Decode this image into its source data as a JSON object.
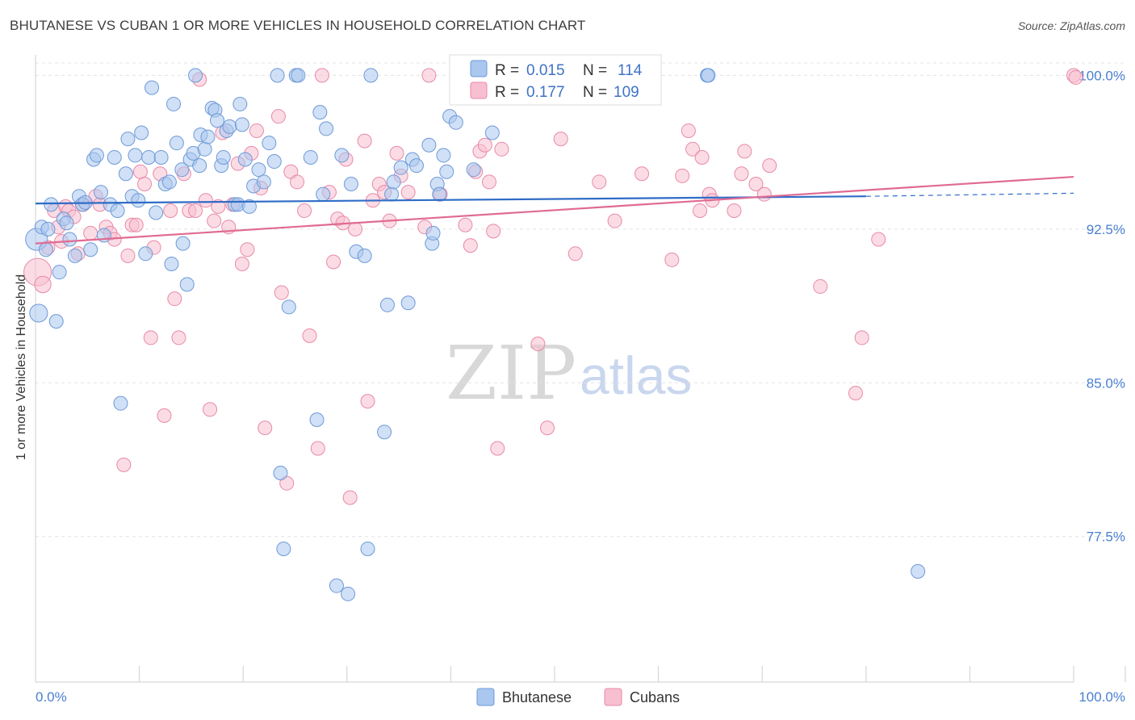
{
  "title": "BHUTANESE VS CUBAN 1 OR MORE VEHICLES IN HOUSEHOLD CORRELATION CHART",
  "source": "Source: ZipAtlas.com",
  "watermark": {
    "zip": "ZIP",
    "atlas": "atlas"
  },
  "legend_top": {
    "rows": [
      {
        "r_label": "R =",
        "r_value": "0.015",
        "n_label": "N =",
        "n_value": "114"
      },
      {
        "r_label": "R =",
        "r_value": "0.177",
        "n_label": "N =",
        "n_value": "109"
      }
    ]
  },
  "legend_bottom": [
    "Bhutanese",
    "Cubans"
  ],
  "colors": {
    "bhutanese_fill": "#a9c7ef",
    "bhutanese_stroke": "#6e9ad8",
    "bhutanese_line": "#2f6cc6",
    "cubans_fill": "#f7bfd0",
    "cubans_stroke": "#e88aa8",
    "cubans_line": "#e06b92",
    "tick_label": "#4a7fd0",
    "grid": "#e3e3e3"
  },
  "chart_data": {
    "type": "scatter",
    "title": "BHUTANESE VS CUBAN 1 OR MORE VEHICLES IN HOUSEHOLD CORRELATION CHART",
    "xlabel": "",
    "ylabel": "1 or more Vehicles in Household",
    "xlim": [
      0,
      100
    ],
    "ylim": [
      70.4,
      101.0
    ],
    "x_tick_labels": [
      "0.0%",
      "100.0%"
    ],
    "y_ticks": [
      77.5,
      85.0,
      92.5,
      100.0
    ],
    "y_tick_labels": [
      "77.5%",
      "85.0%",
      "92.5%",
      "100.0%"
    ],
    "grid": "horizontal dashed",
    "legend_placement": "top-center and bottom",
    "series": [
      {
        "name": "Bhutanese",
        "r": 0.015,
        "n": 114,
        "trend": {
          "x": [
            0,
            80
          ],
          "y": [
            93.75,
            94.1
          ],
          "dashed_extension_to_x": 100,
          "dashed_end_y": 94.25
        },
        "points": [
          [
            0.1,
            92.0,
            1.6
          ],
          [
            0.3,
            88.4,
            1.3
          ],
          [
            0.6,
            92.6,
            1.0
          ],
          [
            1.0,
            91.5,
            1.0
          ],
          [
            1.2,
            92.5,
            1.0
          ],
          [
            1.5,
            93.7,
            1.0
          ],
          [
            2.0,
            88.0,
            1.0
          ],
          [
            2.3,
            90.4,
            1.0
          ],
          [
            2.7,
            93.0,
            1.0
          ],
          [
            3.0,
            92.8,
            1.0
          ],
          [
            3.3,
            92.0,
            1.0
          ],
          [
            3.8,
            91.2,
            1.0
          ],
          [
            4.2,
            94.1,
            1.0
          ],
          [
            4.5,
            93.7,
            1.0
          ],
          [
            4.8,
            93.8,
            1.0
          ],
          [
            5.3,
            91.5,
            1.0
          ],
          [
            5.6,
            95.9,
            1.0
          ],
          [
            5.9,
            96.1,
            1.0
          ],
          [
            6.3,
            94.3,
            1.0
          ],
          [
            6.6,
            92.2,
            1.0
          ],
          [
            7.2,
            93.7,
            1.0
          ],
          [
            7.6,
            96.0,
            1.0
          ],
          [
            7.9,
            93.4,
            1.0
          ],
          [
            8.2,
            84.0,
            1.0
          ],
          [
            8.7,
            95.2,
            1.0
          ],
          [
            8.9,
            96.9,
            1.0
          ],
          [
            9.3,
            94.1,
            1.0
          ],
          [
            9.6,
            96.1,
            1.0
          ],
          [
            9.9,
            93.9,
            1.0
          ],
          [
            10.2,
            97.2,
            1.0
          ],
          [
            10.6,
            91.3,
            1.0
          ],
          [
            10.9,
            96.0,
            1.0
          ],
          [
            11.2,
            99.4,
            1.0
          ],
          [
            11.6,
            93.3,
            1.0
          ],
          [
            12.1,
            96.0,
            1.0
          ],
          [
            12.5,
            94.7,
            1.0
          ],
          [
            12.9,
            94.8,
            1.0
          ],
          [
            13.1,
            90.8,
            1.0
          ],
          [
            13.3,
            98.6,
            1.0
          ],
          [
            13.6,
            96.7,
            1.0
          ],
          [
            14.1,
            95.4,
            1.0
          ],
          [
            14.2,
            91.8,
            1.0
          ],
          [
            14.6,
            89.8,
            1.0
          ],
          [
            14.9,
            95.9,
            1.0
          ],
          [
            15.2,
            96.2,
            1.0
          ],
          [
            15.4,
            100.0,
            1.0
          ],
          [
            15.8,
            95.6,
            1.0
          ],
          [
            15.9,
            97.1,
            1.0
          ],
          [
            16.3,
            96.4,
            1.0
          ],
          [
            16.6,
            97.0,
            1.0
          ],
          [
            17.0,
            98.4,
            1.0
          ],
          [
            17.3,
            98.3,
            1.0
          ],
          [
            17.5,
            97.8,
            1.0
          ],
          [
            17.9,
            95.6,
            1.0
          ],
          [
            18.1,
            96.0,
            1.0
          ],
          [
            18.4,
            97.3,
            1.0
          ],
          [
            18.7,
            97.5,
            1.0
          ],
          [
            19.2,
            93.7,
            1.0
          ],
          [
            19.5,
            93.7,
            1.0
          ],
          [
            19.7,
            98.6,
            1.0
          ],
          [
            19.9,
            97.6,
            1.0
          ],
          [
            20.2,
            95.9,
            1.0
          ],
          [
            20.6,
            93.6,
            1.0
          ],
          [
            21.0,
            94.6,
            1.0
          ],
          [
            21.5,
            95.4,
            1.0
          ],
          [
            22.0,
            94.8,
            1.0
          ],
          [
            22.5,
            96.7,
            1.0
          ],
          [
            23.0,
            95.8,
            1.0
          ],
          [
            23.3,
            100.0,
            1.0
          ],
          [
            23.6,
            80.6,
            1.0
          ],
          [
            23.9,
            76.9,
            1.0
          ],
          [
            24.4,
            88.7,
            1.0
          ],
          [
            25.1,
            100.0,
            1.0
          ],
          [
            25.3,
            100.0,
            1.0
          ],
          [
            26.5,
            96.0,
            1.0
          ],
          [
            27.1,
            83.2,
            1.0
          ],
          [
            27.4,
            98.2,
            1.0
          ],
          [
            27.7,
            94.2,
            1.0
          ],
          [
            28.0,
            97.4,
            1.0
          ],
          [
            29.0,
            75.1,
            1.0
          ],
          [
            29.5,
            96.1,
            1.0
          ],
          [
            30.1,
            74.7,
            1.0
          ],
          [
            30.4,
            94.7,
            1.0
          ],
          [
            30.9,
            91.4,
            1.0
          ],
          [
            31.7,
            91.2,
            1.0
          ],
          [
            32.0,
            76.9,
            1.0
          ],
          [
            32.3,
            100.0,
            1.0
          ],
          [
            33.6,
            82.6,
            1.0
          ],
          [
            33.9,
            88.8,
            1.0
          ],
          [
            34.3,
            94.2,
            1.0
          ],
          [
            34.5,
            94.8,
            1.0
          ],
          [
            35.2,
            95.5,
            1.0
          ],
          [
            35.9,
            88.9,
            1.0
          ],
          [
            36.3,
            95.9,
            1.0
          ],
          [
            36.7,
            95.6,
            1.0
          ],
          [
            37.9,
            96.6,
            1.0
          ],
          [
            38.2,
            91.8,
            1.0
          ],
          [
            38.3,
            92.3,
            1.0
          ],
          [
            38.7,
            94.7,
            1.0
          ],
          [
            38.9,
            94.2,
            1.0
          ],
          [
            39.3,
            96.1,
            1.0
          ],
          [
            39.6,
            95.3,
            1.0
          ],
          [
            39.9,
            98.0,
            1.0
          ],
          [
            40.5,
            97.7,
            1.0
          ],
          [
            42.2,
            95.4,
            1.0
          ],
          [
            44.0,
            97.2,
            1.0
          ],
          [
            58.5,
            100.0,
            1.0
          ],
          [
            64.7,
            100.0,
            1.0
          ],
          [
            64.8,
            100.0,
            1.0
          ],
          [
            85.0,
            75.8,
            1.0
          ]
        ]
      },
      {
        "name": "Cubans",
        "r": 0.177,
        "n": 109,
        "trend": {
          "x": [
            0,
            100
          ],
          "y": [
            91.8,
            95.05
          ]
        },
        "points": [
          [
            0.2,
            90.4,
            2.0
          ],
          [
            0.7,
            89.8,
            1.2
          ],
          [
            1.2,
            91.6,
            1.0
          ],
          [
            1.8,
            93.4,
            1.0
          ],
          [
            2.2,
            92.6,
            1.0
          ],
          [
            2.5,
            91.9,
            1.0
          ],
          [
            2.9,
            93.6,
            1.0
          ],
          [
            3.2,
            93.4,
            1.0
          ],
          [
            3.7,
            93.1,
            1.0
          ],
          [
            4.1,
            91.3,
            1.0
          ],
          [
            4.6,
            93.7,
            1.0
          ],
          [
            5.3,
            92.3,
            1.0
          ],
          [
            5.8,
            94.1,
            1.0
          ],
          [
            6.2,
            93.7,
            1.0
          ],
          [
            6.8,
            92.6,
            1.0
          ],
          [
            7.2,
            92.3,
            1.0
          ],
          [
            7.6,
            92.0,
            1.0
          ],
          [
            8.5,
            81.0,
            1.0
          ],
          [
            8.9,
            91.2,
            1.0
          ],
          [
            9.3,
            92.7,
            1.0
          ],
          [
            9.7,
            92.7,
            1.0
          ],
          [
            10.1,
            95.3,
            1.0
          ],
          [
            10.5,
            94.7,
            1.0
          ],
          [
            11.1,
            87.2,
            1.0
          ],
          [
            11.4,
            91.6,
            1.0
          ],
          [
            12.0,
            95.2,
            1.0
          ],
          [
            12.4,
            83.4,
            1.0
          ],
          [
            13.0,
            93.4,
            1.0
          ],
          [
            13.4,
            89.1,
            1.0
          ],
          [
            13.8,
            87.2,
            1.0
          ],
          [
            14.3,
            95.2,
            1.0
          ],
          [
            14.8,
            93.4,
            1.0
          ],
          [
            15.4,
            93.4,
            1.0
          ],
          [
            15.8,
            99.8,
            1.0
          ],
          [
            16.4,
            93.9,
            1.0
          ],
          [
            16.8,
            83.7,
            1.0
          ],
          [
            17.2,
            92.9,
            1.0
          ],
          [
            17.6,
            93.6,
            1.0
          ],
          [
            18.0,
            97.2,
            1.0
          ],
          [
            18.6,
            92.6,
            1.0
          ],
          [
            19.0,
            93.7,
            1.0
          ],
          [
            19.5,
            95.7,
            1.0
          ],
          [
            19.9,
            90.8,
            1.0
          ],
          [
            20.4,
            91.5,
            1.0
          ],
          [
            20.8,
            96.2,
            1.0
          ],
          [
            21.3,
            97.3,
            1.0
          ],
          [
            21.7,
            94.5,
            1.0
          ],
          [
            22.1,
            82.8,
            1.0
          ],
          [
            23.4,
            98.0,
            1.0
          ],
          [
            23.7,
            89.4,
            1.0
          ],
          [
            24.2,
            80.1,
            1.0
          ],
          [
            24.6,
            95.3,
            1.0
          ],
          [
            25.2,
            94.8,
            1.0
          ],
          [
            25.9,
            93.4,
            1.0
          ],
          [
            26.4,
            87.3,
            1.0
          ],
          [
            27.2,
            81.8,
            1.0
          ],
          [
            27.6,
            100.0,
            1.0
          ],
          [
            28.3,
            94.3,
            1.0
          ],
          [
            28.7,
            90.9,
            1.0
          ],
          [
            29.1,
            93.0,
            1.0
          ],
          [
            29.6,
            92.8,
            1.0
          ],
          [
            29.9,
            95.9,
            1.0
          ],
          [
            30.3,
            79.4,
            1.0
          ],
          [
            30.8,
            92.5,
            1.0
          ],
          [
            31.7,
            96.8,
            1.0
          ],
          [
            32.0,
            84.1,
            1.0
          ],
          [
            32.5,
            93.9,
            1.0
          ],
          [
            33.1,
            94.7,
            1.0
          ],
          [
            33.6,
            94.3,
            1.0
          ],
          [
            34.1,
            92.9,
            1.0
          ],
          [
            34.8,
            96.2,
            1.0
          ],
          [
            35.2,
            95.1,
            1.0
          ],
          [
            35.9,
            94.3,
            1.0
          ],
          [
            37.5,
            92.6,
            1.0
          ],
          [
            37.9,
            100.0,
            1.0
          ],
          [
            39.0,
            94.2,
            1.0
          ],
          [
            41.4,
            92.7,
            1.0
          ],
          [
            41.9,
            91.7,
            1.0
          ],
          [
            42.4,
            95.3,
            1.0
          ],
          [
            42.8,
            96.3,
            1.0
          ],
          [
            43.3,
            96.6,
            1.0
          ],
          [
            43.7,
            94.8,
            1.0
          ],
          [
            44.1,
            92.4,
            1.0
          ],
          [
            44.5,
            81.8,
            1.0
          ],
          [
            44.9,
            96.4,
            1.0
          ],
          [
            48.4,
            86.9,
            1.0
          ],
          [
            49.3,
            82.8,
            1.0
          ],
          [
            50.6,
            96.9,
            1.0
          ],
          [
            52.0,
            91.3,
            1.0
          ],
          [
            54.3,
            94.8,
            1.0
          ],
          [
            54.8,
            100.0,
            1.0
          ],
          [
            55.8,
            92.9,
            1.0
          ],
          [
            58.4,
            95.2,
            1.0
          ],
          [
            61.3,
            91.0,
            1.0
          ],
          [
            62.3,
            95.1,
            1.0
          ],
          [
            62.9,
            97.3,
            1.0
          ],
          [
            63.3,
            96.4,
            1.0
          ],
          [
            64.0,
            93.4,
            1.0
          ],
          [
            64.2,
            96.0,
            1.0
          ],
          [
            64.9,
            94.2,
            1.0
          ],
          [
            65.2,
            93.9,
            1.0
          ],
          [
            67.3,
            93.4,
            1.0
          ],
          [
            68.0,
            95.2,
            1.0
          ],
          [
            68.3,
            96.3,
            1.0
          ],
          [
            69.4,
            94.7,
            1.0
          ],
          [
            70.2,
            94.2,
            1.0
          ],
          [
            70.7,
            95.6,
            1.0
          ],
          [
            75.6,
            89.7,
            1.0
          ],
          [
            79.0,
            84.5,
            1.0
          ],
          [
            79.6,
            87.2,
            1.0
          ],
          [
            81.2,
            92.0,
            1.0
          ],
          [
            100.0,
            100.0,
            1.0
          ],
          [
            100.2,
            99.9,
            1.0
          ]
        ]
      }
    ]
  }
}
